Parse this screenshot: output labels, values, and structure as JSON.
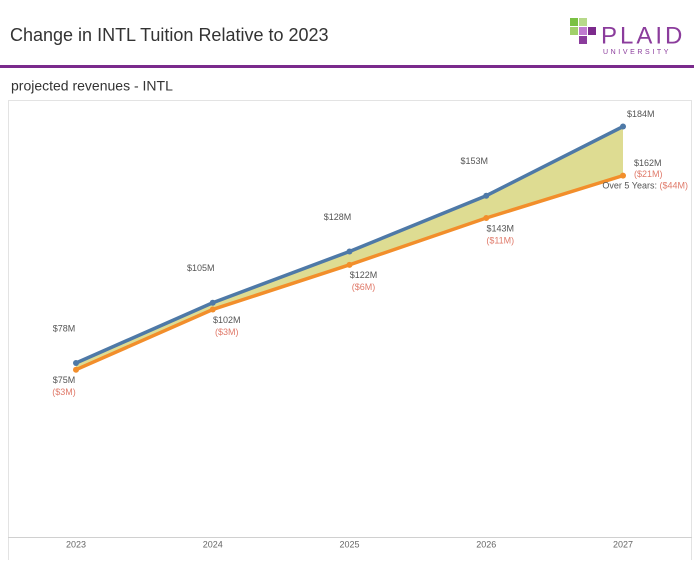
{
  "logo": {
    "name": "PLAID",
    "sub": "UNIVERSITY"
  },
  "chart_data": {
    "type": "line",
    "title": "Change in INTL Tuition Relative to 2023",
    "subtitle": "projected revenues - INTL",
    "categories": [
      "2023",
      "2024",
      "2025",
      "2026",
      "2027"
    ],
    "series": [
      {
        "color": "#4e79a7",
        "values": [
          78,
          105,
          128,
          153,
          184
        ],
        "value_labels": [
          "$78M",
          "$105M",
          "$128M",
          "$153M",
          "$184M"
        ]
      },
      {
        "color": "#f28e2b",
        "values": [
          75,
          102,
          122,
          143,
          162
        ],
        "value_labels": [
          "$75M",
          "$102M",
          "$122M",
          "$143M",
          "$162M"
        ],
        "diff_labels": [
          "($3M)",
          "($3M)",
          "($6M)",
          "($11M)",
          "($21M)"
        ]
      }
    ],
    "fill_color": "#d8d67f",
    "annotation": {
      "label": "Over 5 Years:",
      "value": "($44M)"
    },
    "ylim": [
      0,
      195
    ]
  }
}
